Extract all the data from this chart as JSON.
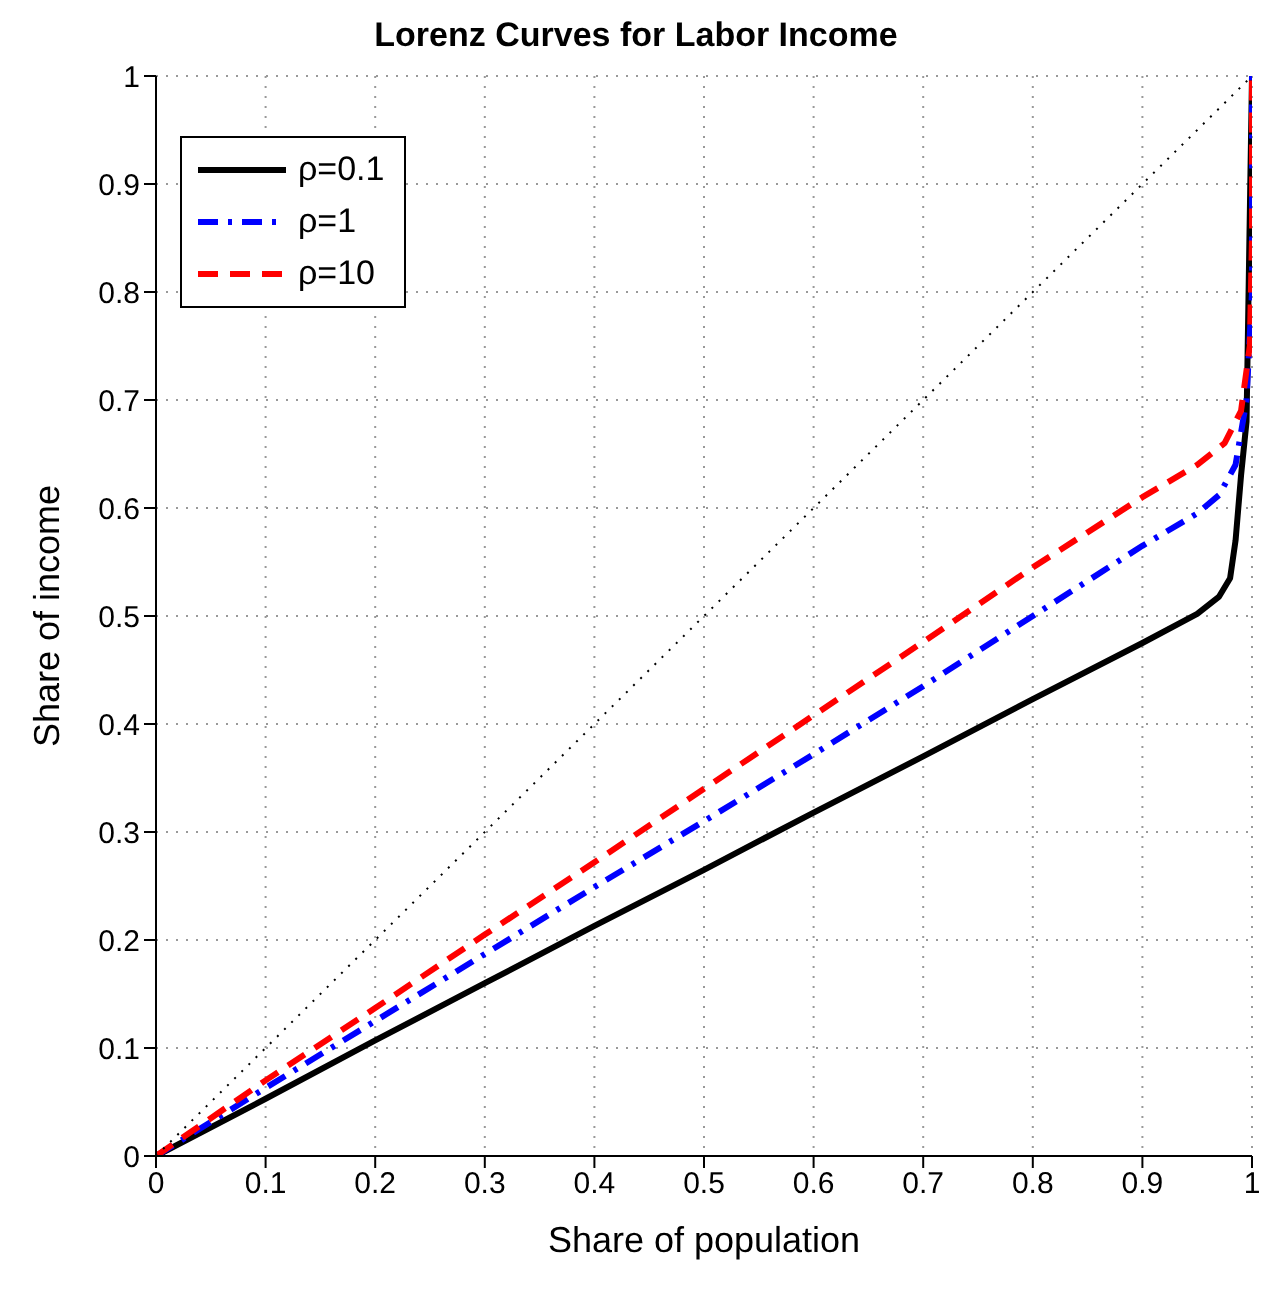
{
  "chart_data": {
    "type": "line",
    "title": "Lorenz Curves for Labor Income",
    "xlabel": "Share of population",
    "ylabel": "Share of income",
    "xlim": [
      0,
      1
    ],
    "ylim": [
      0,
      1
    ],
    "xticks": [
      0,
      0.1,
      0.2,
      0.3,
      0.4,
      0.5,
      0.6,
      0.7,
      0.8,
      0.9,
      1
    ],
    "yticks": [
      0,
      0.1,
      0.2,
      0.3,
      0.4,
      0.5,
      0.6,
      0.7,
      0.8,
      0.9,
      1
    ],
    "grid": true,
    "legend": "top left",
    "marker": "none",
    "series": [
      {
        "name": "ρ=0.1",
        "color": "#000000",
        "line_style": "solid",
        "x": [
          0,
          0.1,
          0.2,
          0.3,
          0.4,
          0.5,
          0.6,
          0.7,
          0.8,
          0.9,
          0.95,
          0.97,
          0.98,
          0.985,
          0.99,
          0.995,
          1
        ],
        "values": [
          0,
          0.053,
          0.107,
          0.16,
          0.213,
          0.265,
          0.318,
          0.37,
          0.423,
          0.475,
          0.502,
          0.518,
          0.535,
          0.57,
          0.63,
          0.68,
          1
        ]
      },
      {
        "name": "ρ=1",
        "color": "#0000ff",
        "line_style": "dashdot",
        "x": [
          0,
          0.1,
          0.2,
          0.3,
          0.4,
          0.5,
          0.6,
          0.7,
          0.8,
          0.9,
          0.95,
          0.97,
          0.985,
          0.995,
          1,
          1
        ],
        "values": [
          0,
          0.063,
          0.125,
          0.187,
          0.249,
          0.31,
          0.372,
          0.435,
          0.5,
          0.565,
          0.595,
          0.612,
          0.64,
          0.7,
          0.8,
          1
        ]
      },
      {
        "name": "ρ=10",
        "color": "#ff0000",
        "line_style": "dashed",
        "x": [
          0,
          0.1,
          0.2,
          0.3,
          0.4,
          0.5,
          0.6,
          0.7,
          0.8,
          0.9,
          0.95,
          0.975,
          0.99,
          0.998,
          1,
          1
        ],
        "values": [
          0,
          0.07,
          0.137,
          0.205,
          0.272,
          0.34,
          0.408,
          0.476,
          0.545,
          0.61,
          0.64,
          0.66,
          0.69,
          0.75,
          0.85,
          1
        ]
      },
      {
        "color": "#000000",
        "line_style": "dotted",
        "x": [
          0,
          1
        ],
        "values": [
          0,
          1
        ]
      }
    ]
  }
}
